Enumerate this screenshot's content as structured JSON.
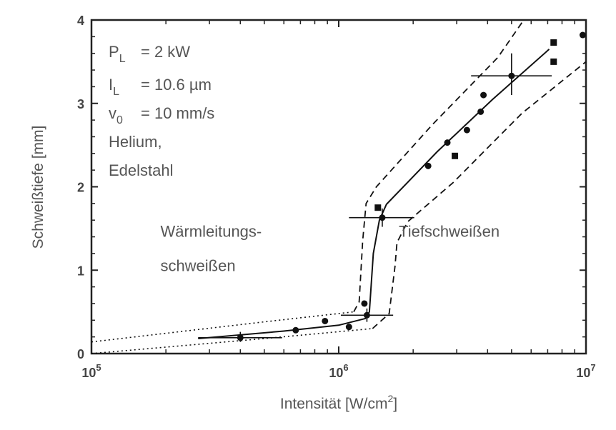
{
  "chart_data": {
    "type": "scatter",
    "xscale": "log",
    "xlim": [
      100000,
      10000000
    ],
    "ylim": [
      0,
      4
    ],
    "xlabel_main": "Intensität [W/cm",
    "xlabel_sup": "2",
    "xlabel_end": "]",
    "ylabel": "Schweißtiefe [mm]",
    "x_ticks": [
      {
        "value": 100000,
        "base": "10",
        "exp": "5"
      },
      {
        "value": 1000000,
        "base": "10",
        "exp": "6"
      },
      {
        "value": 10000000,
        "base": "10",
        "exp": "7"
      }
    ],
    "y_ticks": [
      {
        "value": 0,
        "label": "0"
      },
      {
        "value": 1,
        "label": "1"
      },
      {
        "value": 2,
        "label": "2"
      },
      {
        "value": 3,
        "label": "3"
      },
      {
        "value": 4,
        "label": "4"
      }
    ],
    "parameters": [
      {
        "sym": "P",
        "sub": "L",
        "value": "= 2 kW"
      },
      {
        "sym": "I",
        "sub": "L",
        "value": "= 10.6 µm"
      },
      {
        "sym": "v",
        "sub": "0",
        "value": "= 10 mm/s"
      },
      {
        "sym": "",
        "sub": "",
        "value": "Helium,"
      },
      {
        "sym": "",
        "sub": "",
        "value": "Edelstahl"
      }
    ],
    "regions": [
      {
        "lines": [
          "Wärmleitungs-",
          "schweißen"
        ],
        "x": 190000,
        "y": 1.4
      },
      {
        "lines": [
          "Tiefschweißen"
        ],
        "x": 1750000,
        "y": 1.4
      }
    ],
    "points_circle": [
      [
        400000,
        0.19
      ],
      [
        670000,
        0.28
      ],
      [
        880000,
        0.39
      ],
      [
        1100000,
        0.32
      ],
      [
        1300000,
        0.46
      ],
      [
        1270000,
        0.6
      ],
      [
        1500000,
        1.63
      ],
      [
        2300000,
        2.25
      ],
      [
        2750000,
        2.53
      ],
      [
        3300000,
        2.68
      ],
      [
        3750000,
        2.9
      ],
      [
        3850000,
        3.1
      ],
      [
        5000000,
        3.33
      ],
      [
        9700000,
        3.82
      ]
    ],
    "points_square": [
      [
        1440000,
        1.75
      ],
      [
        2950000,
        2.37
      ],
      [
        7400000,
        3.73
      ],
      [
        7400000,
        3.5
      ]
    ],
    "fit_line": [
      [
        270000,
        0.18
      ],
      [
        600000,
        0.27
      ],
      [
        1000000,
        0.34
      ],
      [
        1280000,
        0.42
      ],
      [
        1330000,
        0.5
      ],
      [
        1380000,
        1.2
      ],
      [
        1460000,
        1.6
      ],
      [
        1560000,
        1.79
      ],
      [
        2500000,
        2.42
      ],
      [
        4200000,
        3.05
      ],
      [
        7100000,
        3.65
      ]
    ],
    "upper_bound": [
      [
        1150000,
        0.5
      ],
      [
        1210000,
        0.62
      ],
      [
        1250000,
        1.35
      ],
      [
        1290000,
        1.8
      ],
      [
        1420000,
        2.0
      ],
      [
        2400000,
        2.75
      ],
      [
        4400000,
        3.55
      ],
      [
        5600000,
        4.0
      ]
    ],
    "lower_bound": [
      [
        1370000,
        0.3
      ],
      [
        1600000,
        0.48
      ],
      [
        1690000,
        1.05
      ],
      [
        1720000,
        1.33
      ],
      [
        1900000,
        1.58
      ],
      [
        2900000,
        2.05
      ],
      [
        5500000,
        2.88
      ],
      [
        10000000,
        3.5
      ]
    ],
    "upper_dotted": [
      [
        100000,
        0.14
      ],
      [
        500000,
        0.38
      ],
      [
        1150000,
        0.5
      ]
    ],
    "lower_dotted": [
      [
        100000,
        0.0
      ],
      [
        500000,
        0.18
      ],
      [
        1370000,
        0.3
      ]
    ],
    "error_bars": [
      {
        "x": 400000,
        "y": 0.19,
        "xmin": 270000,
        "xmax": 590000,
        "ymin": 0.14,
        "ymax": 0.26
      },
      {
        "x": 1300000,
        "y": 0.46,
        "xmin": 1020000,
        "xmax": 1660000,
        "ymin": 0.38,
        "ymax": 0.54
      },
      {
        "x": 1500000,
        "y": 1.63,
        "xmin": 1100000,
        "xmax": 2020000,
        "ymin": 1.52,
        "ymax": 1.74
      },
      {
        "x": 5000000,
        "y": 3.33,
        "xmin": 3430000,
        "xmax": 7270000,
        "ymin": 3.1,
        "ymax": 3.6
      }
    ]
  }
}
